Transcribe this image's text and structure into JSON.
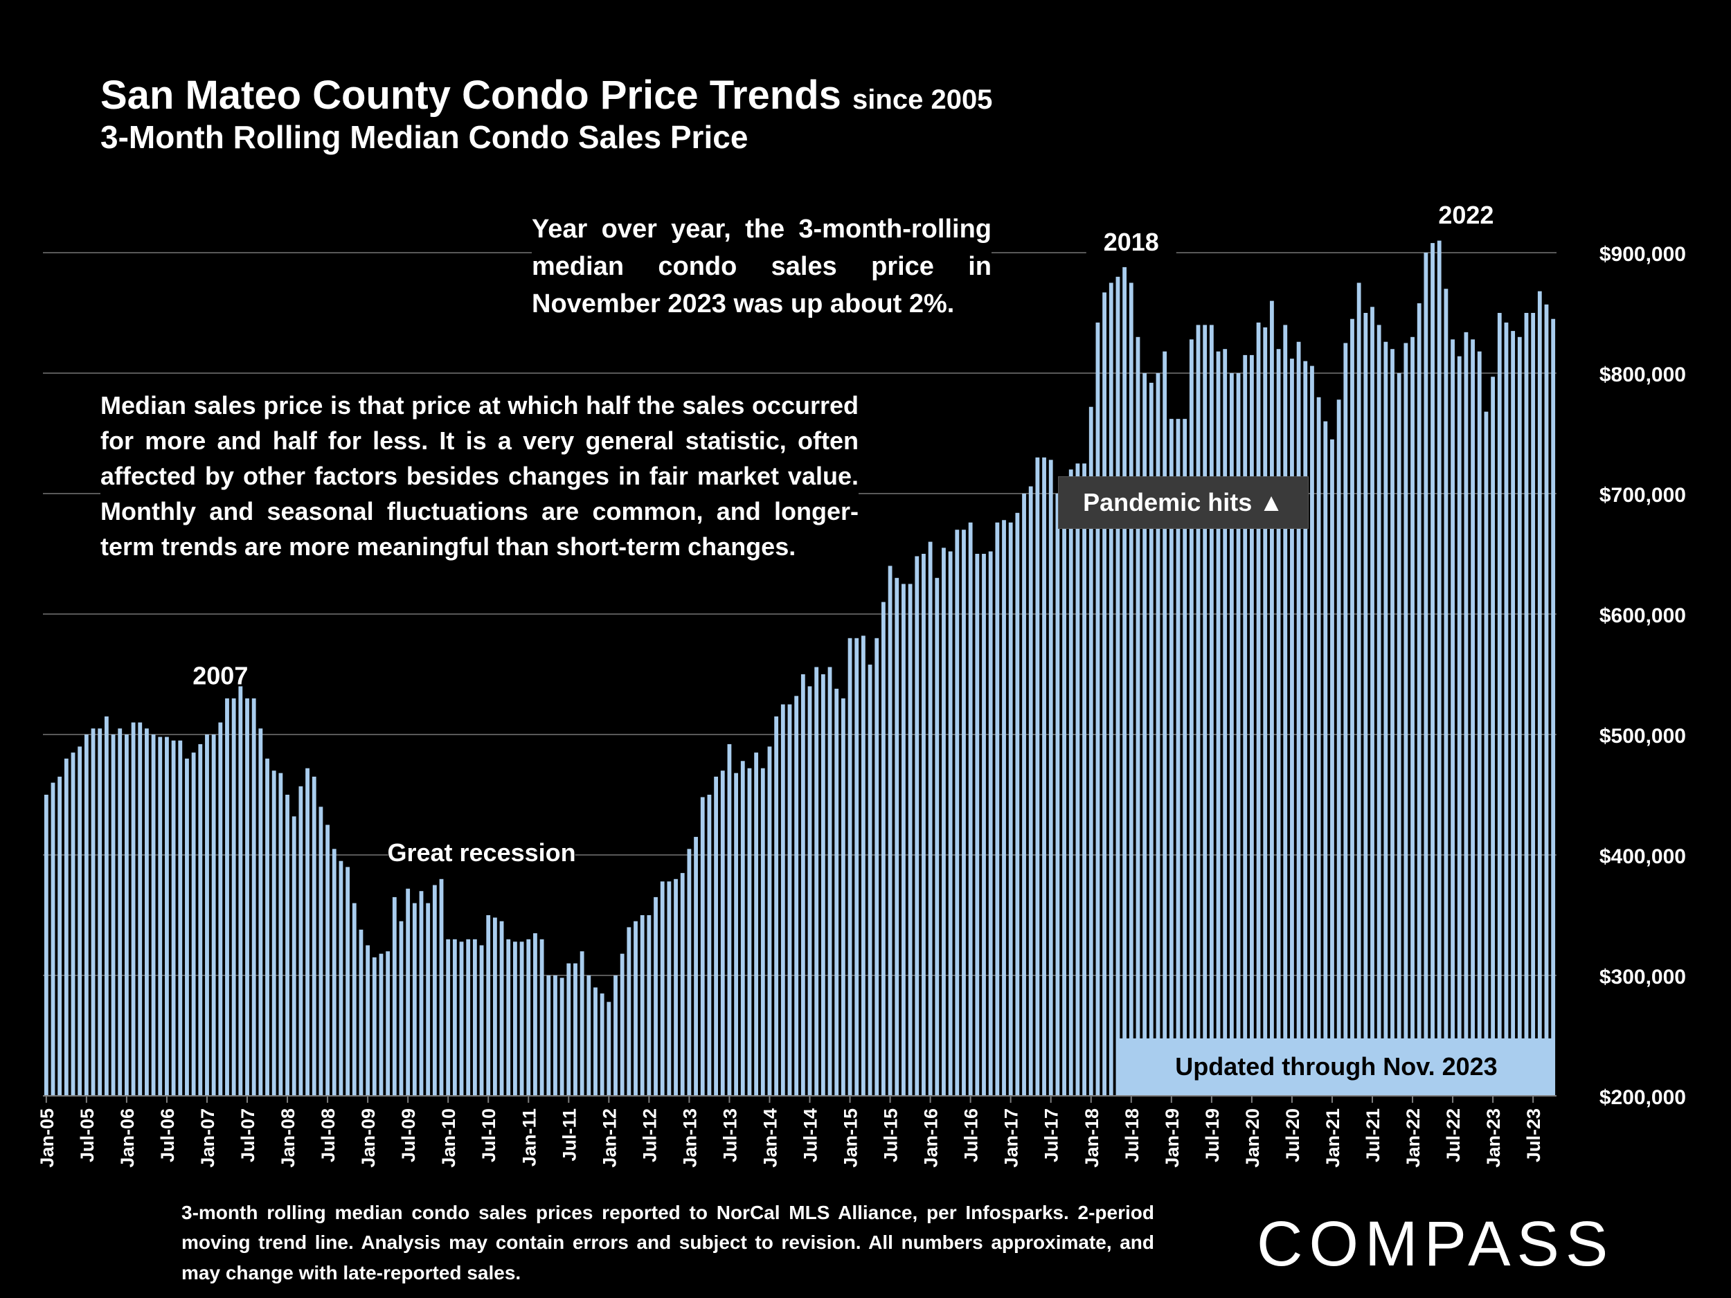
{
  "header": {
    "title": "San Mateo County Condo Price Trends",
    "title_suffix": "since 2005",
    "subtitle": "3-Month Rolling Median Condo Sales Price"
  },
  "notes": {
    "yoy": "Year over year, the 3-month-rolling median condo sales price in November 2023 was up about 2%.",
    "median": "Median sales price is that price at which half the sales occurred for more and half for less. It is a very general statistic, often affected by other factors besides changes in fair market value. Monthly and seasonal fluctuations are common, and longer-term trends are more meaningful than short-term changes."
  },
  "footnote": "3-month rolling median condo sales prices reported to NorCal MLS Alliance, per Infosparks. 2-period moving trend line. Analysis may contain errors and subject to revision. All numbers approximate, and may change with late-reported sales.",
  "brand": "COMPASS",
  "colors": {
    "bar": "#a9cdee",
    "background": "#000000",
    "grid": "#595959",
    "callout": "#3a3a3a"
  },
  "chart_data": {
    "type": "bar",
    "title": "San Mateo County Condo Price Trends since 2005",
    "subtitle": "3-Month Rolling Median Condo Sales Price",
    "xlabel": "",
    "ylabel": "",
    "ylim": [
      200000,
      900000
    ],
    "y_ticks": [
      200000,
      300000,
      400000,
      500000,
      600000,
      700000,
      800000,
      900000
    ],
    "y_tick_labels": [
      "$200,000",
      "$300,000",
      "$400,000",
      "$500,000",
      "$600,000",
      "$700,000",
      "$800,000",
      "$900,000"
    ],
    "y_axis_position": "right",
    "grid": true,
    "x_start": "Jan-05",
    "x_end": "Nov-23",
    "x_tick_labels": [
      "Jan-05",
      "Jul-05",
      "Jan-06",
      "Jul-06",
      "Jan-07",
      "Jul-07",
      "Jan-08",
      "Jul-08",
      "Jan-09",
      "Jul-09",
      "Jan-10",
      "Jul-10",
      "Jan-11",
      "Jul-11",
      "Jan-12",
      "Jul-12",
      "Jan-13",
      "Jul-13",
      "Jan-14",
      "Jul-14",
      "Jan-15",
      "Jul-15",
      "Jan-16",
      "Jul-16",
      "Jan-17",
      "Jul-17",
      "Jan-18",
      "Jul-18",
      "Jan-19",
      "Jul-19",
      "Jan-20",
      "Jul-20",
      "Jan-21",
      "Jul-21",
      "Jan-22",
      "Jul-22",
      "Jan-23",
      "Jul-23"
    ],
    "values": [
      450000,
      460000,
      465000,
      480000,
      485000,
      490000,
      500000,
      505000,
      505000,
      515000,
      500000,
      505000,
      500000,
      510000,
      510000,
      505000,
      500000,
      498000,
      498000,
      495000,
      495000,
      480000,
      485000,
      492000,
      500000,
      500000,
      510000,
      530000,
      530000,
      540000,
      530000,
      530000,
      505000,
      480000,
      470000,
      468000,
      450000,
      432000,
      457000,
      472000,
      465000,
      440000,
      425000,
      405000,
      395000,
      390000,
      360000,
      338000,
      325000,
      315000,
      318000,
      320000,
      365000,
      345000,
      372000,
      360000,
      370000,
      360000,
      375000,
      380000,
      330000,
      330000,
      328000,
      330000,
      330000,
      325000,
      350000,
      348000,
      345000,
      330000,
      328000,
      328000,
      330000,
      335000,
      330000,
      300000,
      300000,
      298000,
      310000,
      310000,
      320000,
      300000,
      290000,
      285000,
      278000,
      300000,
      318000,
      340000,
      345000,
      350000,
      350000,
      365000,
      378000,
      378000,
      380000,
      385000,
      405000,
      415000,
      448000,
      450000,
      465000,
      470000,
      492000,
      468000,
      478000,
      472000,
      485000,
      472000,
      490000,
      515000,
      525000,
      525000,
      532000,
      550000,
      540000,
      556000,
      550000,
      556000,
      538000,
      530000,
      580000,
      580000,
      582000,
      558000,
      580000,
      610000,
      640000,
      630000,
      625000,
      625000,
      648000,
      650000,
      660000,
      630000,
      655000,
      652000,
      670000,
      670000,
      676000,
      650000,
      650000,
      652000,
      676000,
      678000,
      676000,
      684000,
      700000,
      706000,
      730000,
      730000,
      728000,
      700000,
      710000,
      720000,
      725000,
      725000,
      772000,
      842000,
      867000,
      875000,
      880000,
      888000,
      875000,
      830000,
      800000,
      792000,
      800000,
      818000,
      762000,
      762000,
      762000,
      828000,
      840000,
      840000,
      840000,
      818000,
      820000,
      800000,
      800000,
      815000,
      815000,
      842000,
      838000,
      860000,
      820000,
      840000,
      812000,
      826000,
      810000,
      806000,
      780000,
      760000,
      745000,
      778000,
      825000,
      845000,
      875000,
      850000,
      855000,
      840000,
      826000,
      820000,
      800000,
      825000,
      830000,
      858000,
      900000,
      908000,
      910000,
      870000,
      828000,
      814000,
      834000,
      828000,
      818000,
      768000,
      797000,
      850000,
      842000,
      835000,
      830000,
      850000,
      850000,
      868000,
      857000,
      845000
    ],
    "annotations": [
      {
        "text": "2007",
        "anchor_index": 26
      },
      {
        "text": "Great recession",
        "anchor_index": 65
      },
      {
        "text": "2018",
        "anchor_index": 162
      },
      {
        "text": "2022",
        "anchor_index": 212
      },
      {
        "text": "Pandemic hits ▲",
        "anchor_index": 183
      },
      {
        "text": "Updated through Nov. 2023",
        "anchor_index": 225
      }
    ]
  }
}
